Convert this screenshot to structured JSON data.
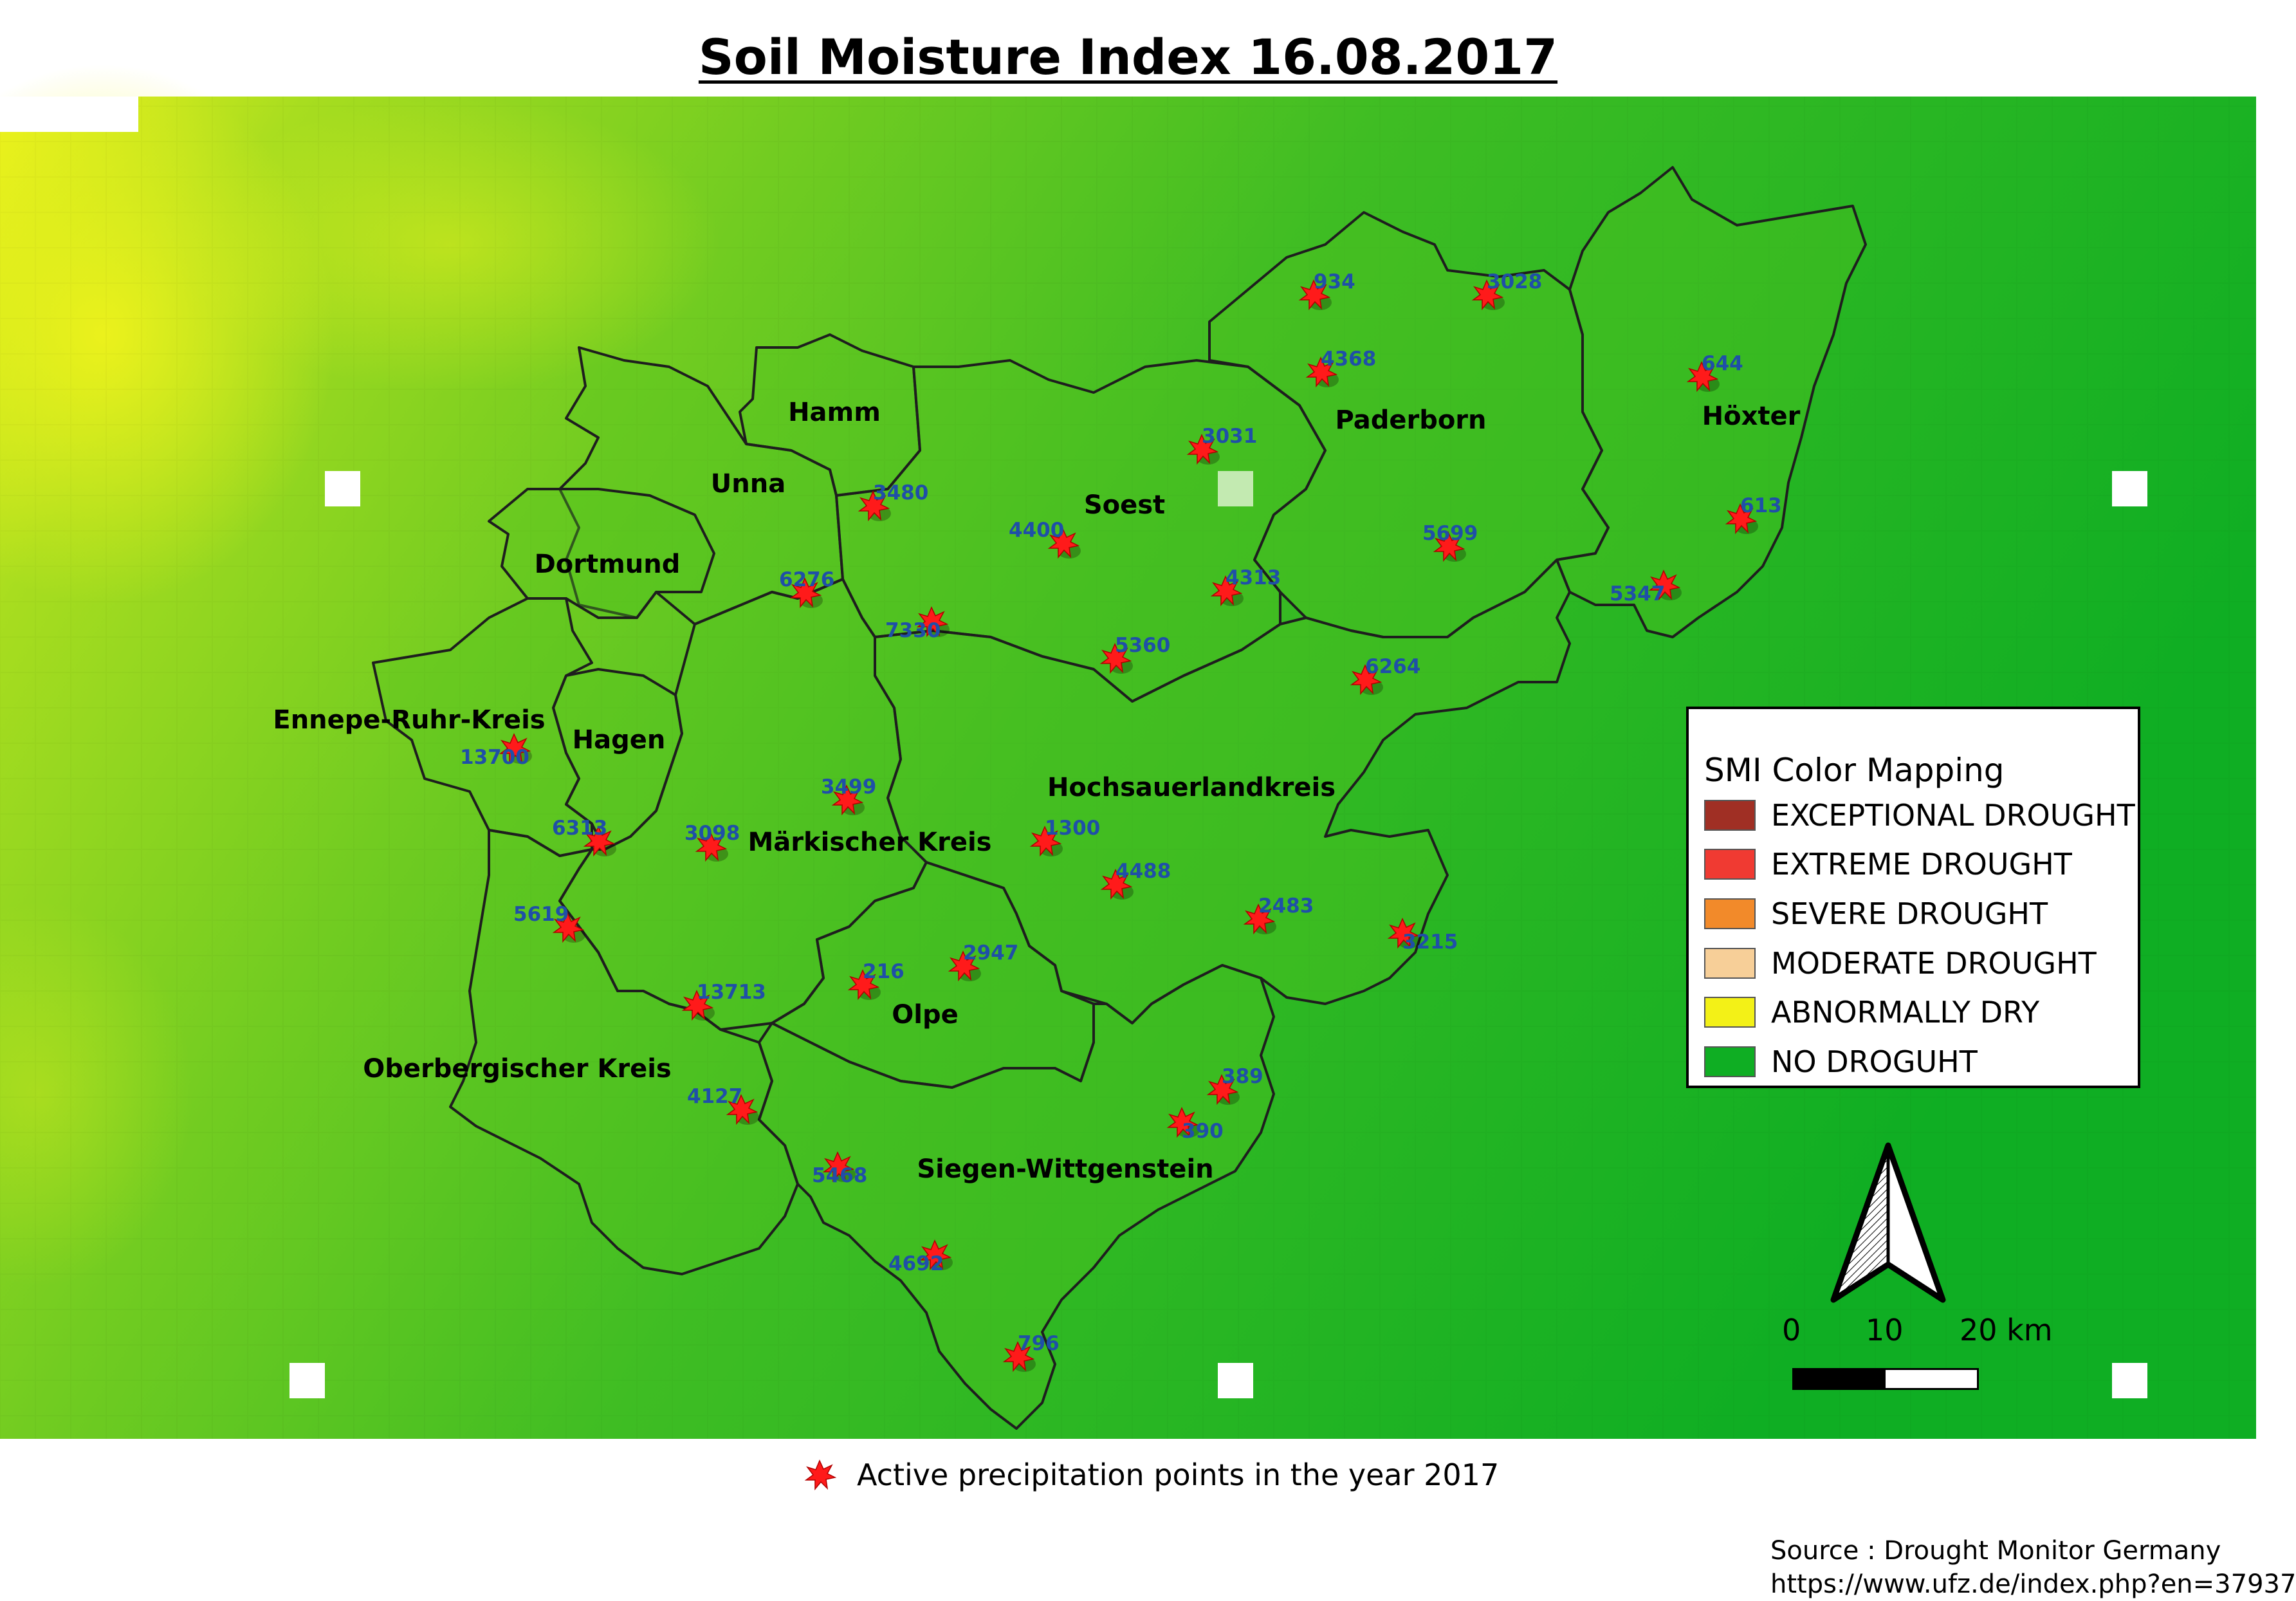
{
  "title": "Soil Moisture Index 16.08.2017",
  "colors": {
    "background_ramp": [
      "#eef21c",
      "#a8dd1f",
      "#72cc21",
      "#3fbd23",
      "#0fae23"
    ],
    "district_fill": "#52c41f",
    "district_border": "#1e1e1e",
    "station_marker": "#ff1a1a",
    "station_label": "#1f4fa8",
    "district_label": "#000000"
  },
  "districts": [
    {
      "name": "Hamm"
    },
    {
      "name": "Unna"
    },
    {
      "name": "Dortmund"
    },
    {
      "name": "Soest"
    },
    {
      "name": "Paderborn"
    },
    {
      "name": "Höxter"
    },
    {
      "name": "Ennepe-Ruhr-Kreis"
    },
    {
      "name": "Hagen"
    },
    {
      "name": "Märkischer Kreis"
    },
    {
      "name": "Hochsauerlandkreis"
    },
    {
      "name": "Olpe"
    },
    {
      "name": "Oberbergischer Kreis"
    },
    {
      "name": "Siegen-Wittgenstein"
    }
  ],
  "stations": [
    {
      "id": "934"
    },
    {
      "id": "3028"
    },
    {
      "id": "4368"
    },
    {
      "id": "644"
    },
    {
      "id": "3031"
    },
    {
      "id": "3480"
    },
    {
      "id": "4400"
    },
    {
      "id": "613"
    },
    {
      "id": "5699"
    },
    {
      "id": "6276"
    },
    {
      "id": "4313"
    },
    {
      "id": "5347"
    },
    {
      "id": "7330"
    },
    {
      "id": "5360"
    },
    {
      "id": "6264"
    },
    {
      "id": "13700"
    },
    {
      "id": "3499"
    },
    {
      "id": "6313"
    },
    {
      "id": "3098"
    },
    {
      "id": "1300"
    },
    {
      "id": "4488"
    },
    {
      "id": "2483"
    },
    {
      "id": "3215"
    },
    {
      "id": "5619"
    },
    {
      "id": "216"
    },
    {
      "id": "2947"
    },
    {
      "id": "13713"
    },
    {
      "id": "389"
    },
    {
      "id": "4127"
    },
    {
      "id": "390"
    },
    {
      "id": "5468"
    },
    {
      "id": "4692"
    },
    {
      "id": "796"
    }
  ],
  "legend": {
    "title": "SMI Color Mapping",
    "items": [
      {
        "label": "EXCEPTIONAL DROUGHT",
        "color": "#a02f24"
      },
      {
        "label": "EXTREME DROUGHT",
        "color": "#f03a32"
      },
      {
        "label": "SEVERE DROUGHT",
        "color": "#f28a2a"
      },
      {
        "label": "MODERATE DROUGHT",
        "color": "#f7cf98"
      },
      {
        "label": "ABNORMALLY DRY",
        "color": "#f3f117"
      },
      {
        "label": "NO DROGUHT",
        "color": "#0fae23"
      }
    ]
  },
  "scale_bar": {
    "ticks": [
      "0",
      "10",
      "20 km"
    ]
  },
  "footnote": "Active precipitation points in the year 2017",
  "source": {
    "line1": "Source : Drought Monitor Germany",
    "line2": "https://www.ufz.de/index.php?en=37937"
  }
}
